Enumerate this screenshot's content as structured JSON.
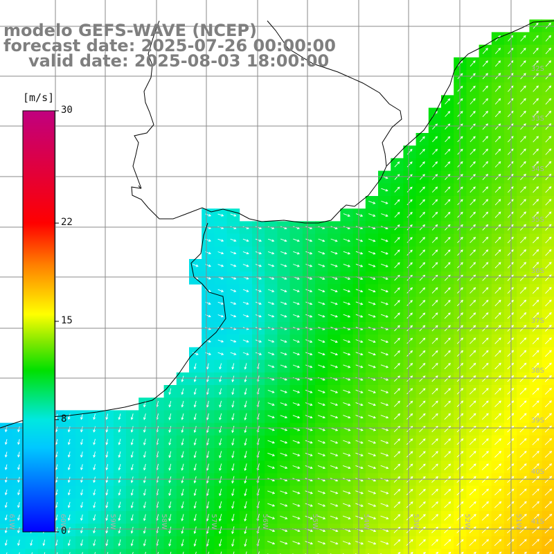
{
  "title": {
    "line1": "modelo GEFS-WAVE (NCEP)",
    "line2": "forecast date: 2025-07-26 00:00:00",
    "line3": "valid date: 2025-08-03 18:00:00"
  },
  "colorbar": {
    "units": "[m/s]",
    "ticks": [
      "30",
      "22",
      "15",
      "8",
      "0"
    ],
    "tick_values": [
      30,
      22,
      15,
      8,
      0
    ],
    "range": [
      0,
      30
    ],
    "colors": [
      "#0000ff",
      "#00c8ff",
      "#00e8e0",
      "#00e000",
      "#80e800",
      "#ffff00",
      "#ff8000",
      "#ff0000",
      "#c0007f"
    ]
  },
  "map": {
    "lat_labels": [
      "32S",
      "33S",
      "34S",
      "35S",
      "36S",
      "37S",
      "38S",
      "39S",
      "40S",
      "41S"
    ],
    "lon_labels": [
      "61W",
      "60W",
      "59W",
      "58W",
      "57W",
      "56W",
      "55W",
      "54W",
      "53W",
      "52W",
      "51W"
    ],
    "field_variable": "wind speed",
    "arrow_color": "#ffffff"
  }
}
